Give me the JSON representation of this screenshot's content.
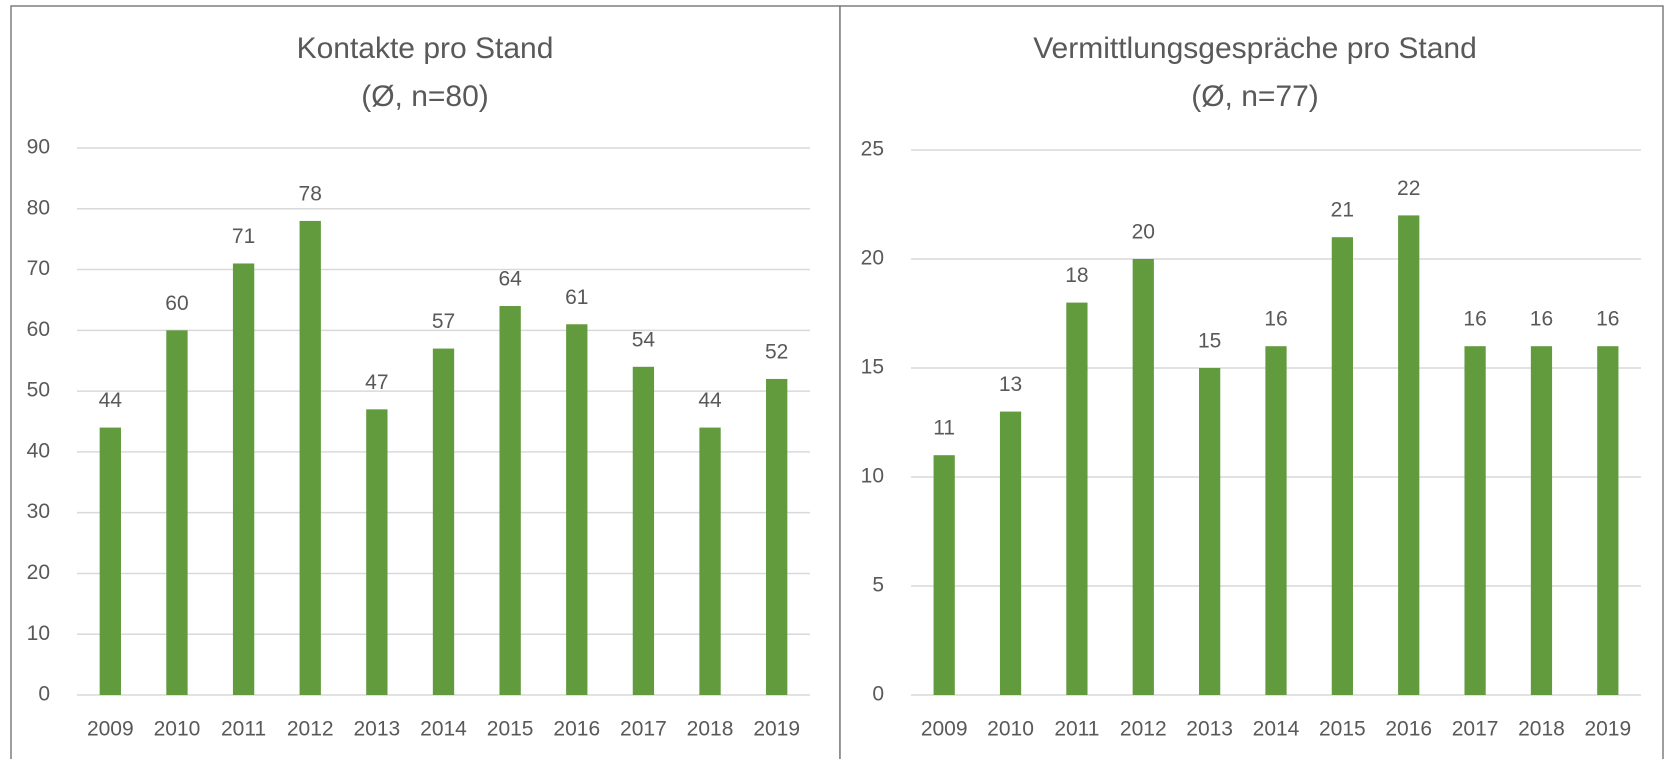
{
  "chart_data": [
    {
      "type": "bar",
      "title": [
        "Kontakte pro Stand",
        "(Ø, n=80)"
      ],
      "categories": [
        "2009",
        "2010",
        "2011",
        "2012",
        "2013",
        "2014",
        "2015",
        "2016",
        "2017",
        "2018",
        "2019"
      ],
      "values": [
        44,
        60,
        71,
        78,
        47,
        57,
        64,
        61,
        54,
        44,
        52
      ],
      "color": "#629a3e",
      "ylim": [
        0,
        90
      ],
      "yticks": [
        0,
        10,
        20,
        30,
        40,
        50,
        60,
        70,
        80,
        90
      ],
      "grid": true
    },
    {
      "type": "bar",
      "title": [
        "Vermittlungsgespräche pro Stand",
        "(Ø, n=77)"
      ],
      "categories": [
        "2009",
        "2010",
        "2011",
        "2012",
        "2013",
        "2014",
        "2015",
        "2016",
        "2017",
        "2018",
        "2019"
      ],
      "values": [
        11,
        13,
        18,
        20,
        15,
        16,
        21,
        22,
        16,
        16,
        16
      ],
      "color": "#629a3e",
      "ylim": [
        0,
        25
      ],
      "yticks": [
        0,
        5,
        10,
        15,
        20,
        25
      ],
      "grid": true
    }
  ]
}
